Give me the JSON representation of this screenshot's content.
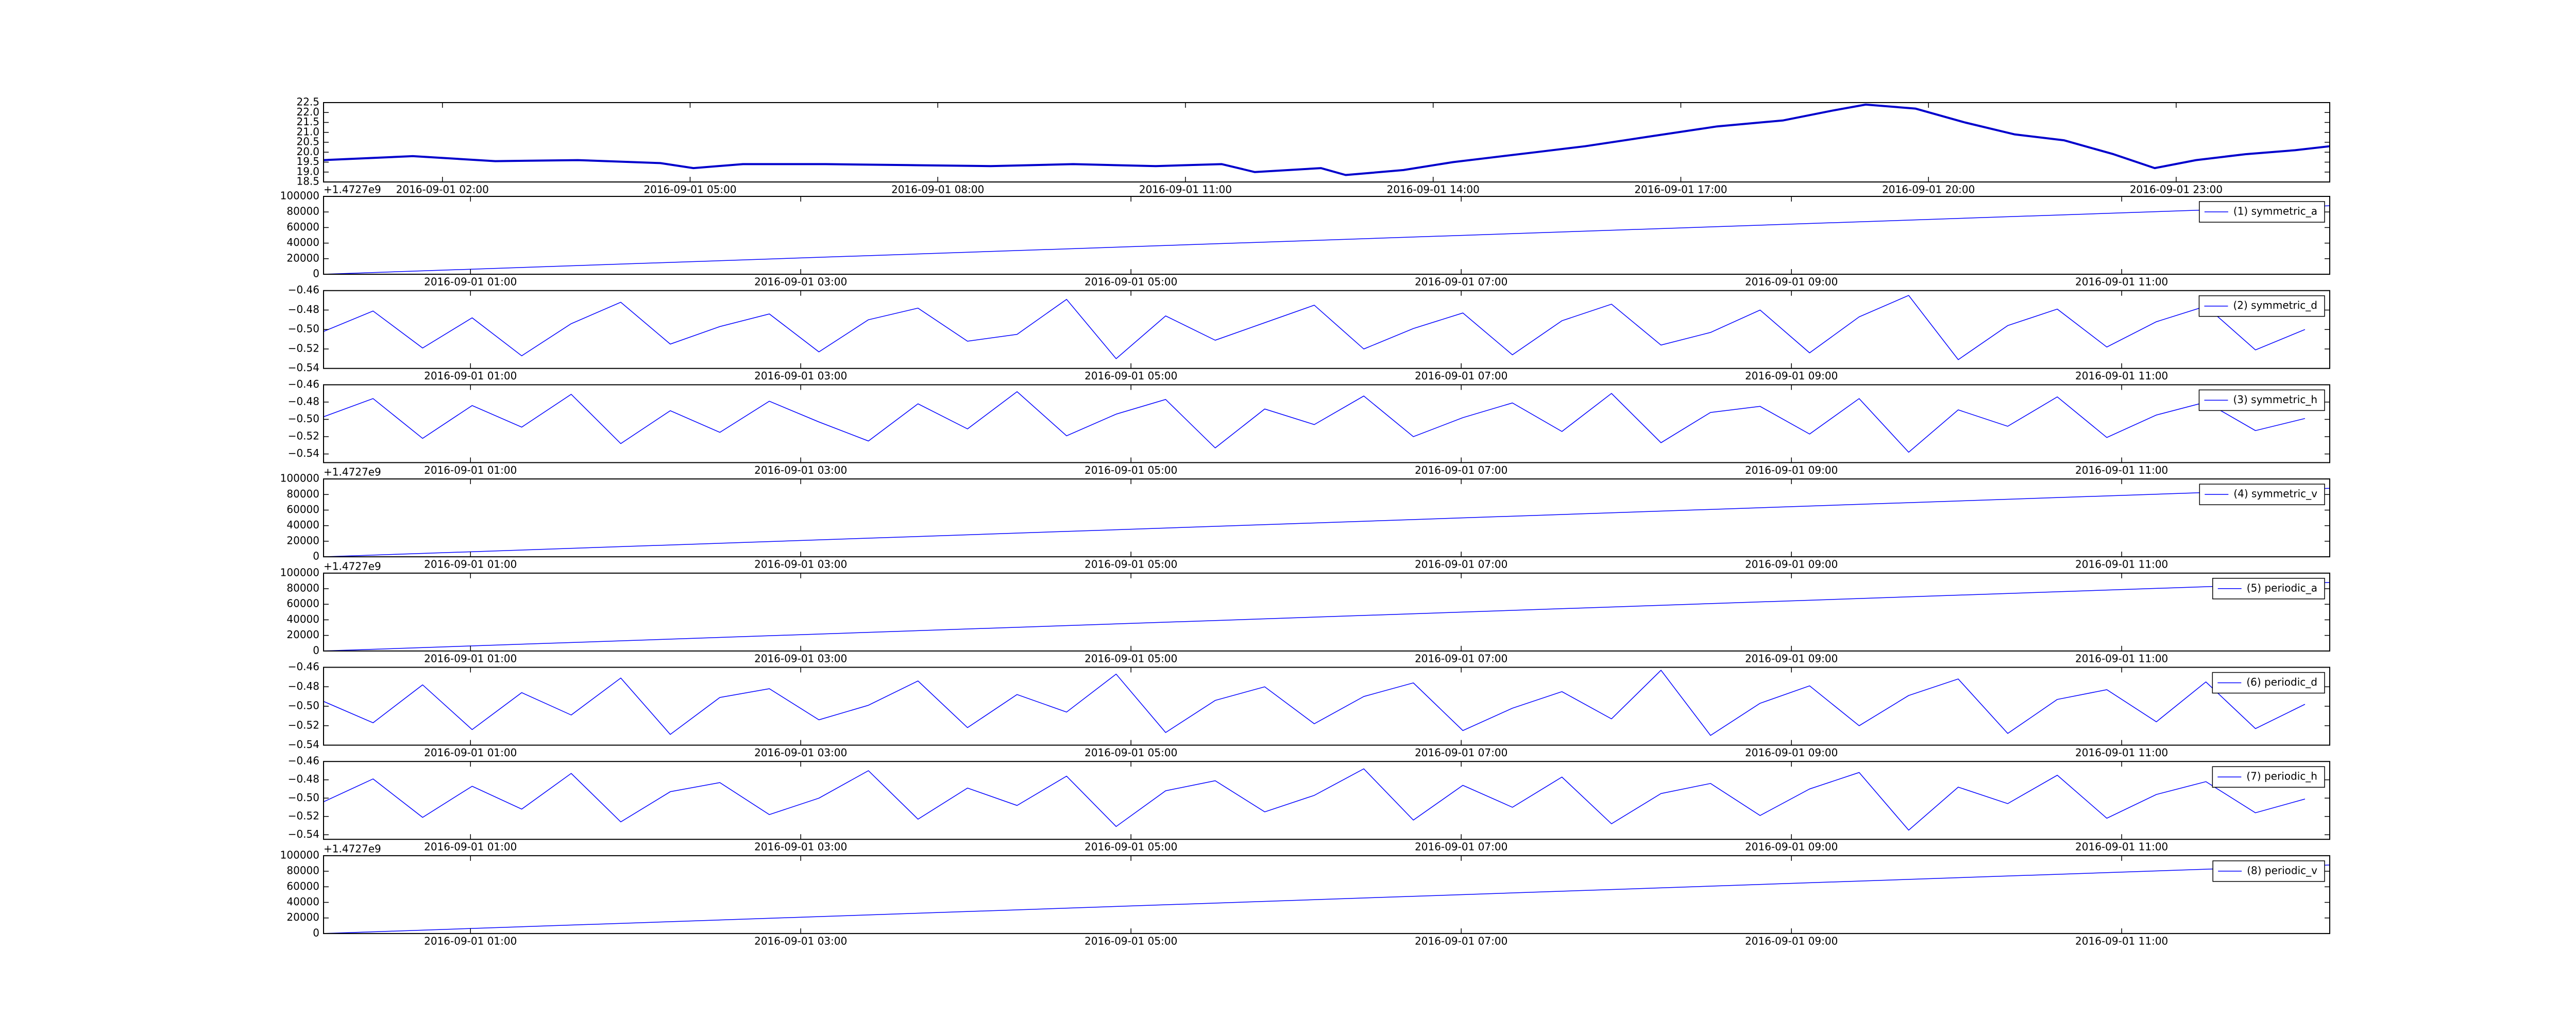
{
  "chart_data": [
    {
      "type": "line",
      "color": "#0000cc",
      "linewidth": 4,
      "x": [
        0.56,
        1.64,
        2.64,
        3.64,
        4.64,
        5.04,
        5.64,
        6.64,
        7.64,
        8.64,
        9.64,
        10.64,
        11.44,
        11.84,
        12.64,
        12.94,
        13.64,
        14.24,
        14.64,
        15.24,
        15.84,
        16.64,
        17.44,
        18.24,
        18.84,
        19.24,
        19.84,
        20.44,
        21.04,
        21.64,
        22.24,
        22.74,
        23.24,
        23.84,
        24.44,
        24.86
      ],
      "values": [
        19.6,
        19.8,
        19.55,
        19.6,
        19.45,
        19.2,
        19.4,
        19.4,
        19.35,
        19.3,
        19.4,
        19.3,
        19.4,
        19.0,
        19.2,
        18.85,
        19.1,
        19.5,
        19.7,
        20.0,
        20.3,
        20.8,
        21.3,
        21.6,
        22.1,
        22.4,
        22.2,
        21.5,
        20.9,
        20.6,
        19.9,
        19.2,
        19.6,
        19.9,
        20.1,
        20.3
      ],
      "xlim": [
        0.56,
        24.86
      ],
      "xticks": [
        {
          "value": 2,
          "label": "2016-09-01 02:00"
        },
        {
          "value": 5,
          "label": "2016-09-01 05:00"
        },
        {
          "value": 8,
          "label": "2016-09-01 08:00"
        },
        {
          "value": 11,
          "label": "2016-09-01 11:00"
        },
        {
          "value": 14,
          "label": "2016-09-01 14:00"
        },
        {
          "value": 17,
          "label": "2016-09-01 17:00"
        },
        {
          "value": 20,
          "label": "2016-09-01 20:00"
        },
        {
          "value": 23,
          "label": "2016-09-01 23:00"
        }
      ],
      "ylim": [
        18.5,
        22.5
      ],
      "yticks": [
        18.5,
        {
          "value": 19,
          "label": "19.0"
        },
        19.5,
        {
          "value": 20,
          "label": "20.0"
        },
        20.5,
        {
          "value": 21,
          "label": "21.0"
        },
        21.5,
        {
          "value": 22,
          "label": "22.0"
        },
        22.5
      ]
    },
    {
      "type": "line",
      "offset_text": "+1.4727e9",
      "legend": "upper right",
      "x": [
        0.11,
        12.26
      ],
      "series": [
        {
          "name": "(1) symmetric_a",
          "color": "#0000ff",
          "values": [
            0,
            88000
          ]
        }
      ],
      "xlim": [
        0.11,
        12.26
      ],
      "xticks": [
        {
          "value": 1,
          "label": "2016-09-01 01:00"
        },
        {
          "value": 3,
          "label": "2016-09-01 03:00"
        },
        {
          "value": 5,
          "label": "2016-09-01 05:00"
        },
        {
          "value": 7,
          "label": "2016-09-01 07:00"
        },
        {
          "value": 9,
          "label": "2016-09-01 09:00"
        },
        {
          "value": 11,
          "label": "2016-09-01 11:00"
        }
      ],
      "ylim": [
        0,
        100000
      ],
      "yticks": [
        0,
        20000,
        40000,
        60000,
        80000,
        100000
      ]
    },
    {
      "type": "line",
      "legend": "upper right",
      "x": [
        0.11,
        0.41,
        0.71,
        1.01,
        1.31,
        1.61,
        1.91,
        2.21,
        2.51,
        2.81,
        3.11,
        3.41,
        3.71,
        4.01,
        4.31,
        4.61,
        4.91,
        5.21,
        5.51,
        5.81,
        6.11,
        6.41,
        6.71,
        7.01,
        7.31,
        7.61,
        7.91,
        8.21,
        8.51,
        8.81,
        9.11,
        9.41,
        9.71,
        10.01,
        10.31,
        10.61,
        10.91,
        11.21,
        11.51,
        11.81,
        12.11
      ],
      "series": [
        {
          "name": "(2) symmetric_d",
          "color": "#0000ff",
          "values": [
            -0.502,
            -0.481,
            -0.519,
            -0.488,
            -0.527,
            -0.494,
            -0.472,
            -0.515,
            -0.497,
            -0.484,
            -0.523,
            -0.49,
            -0.478,
            -0.512,
            -0.505,
            -0.469,
            -0.53,
            -0.486,
            -0.511,
            -0.493,
            -0.475,
            -0.52,
            -0.499,
            -0.483,
            -0.526,
            -0.491,
            -0.474,
            -0.516,
            -0.503,
            -0.48,
            -0.524,
            -0.487,
            -0.465,
            -0.531,
            -0.496,
            -0.479,
            -0.518,
            -0.492,
            -0.476,
            -0.521,
            -0.5
          ]
        }
      ],
      "xlim": [
        0.11,
        12.26
      ],
      "xticks": [
        {
          "value": 1,
          "label": "2016-09-01 01:00"
        },
        {
          "value": 3,
          "label": "2016-09-01 03:00"
        },
        {
          "value": 5,
          "label": "2016-09-01 05:00"
        },
        {
          "value": 7,
          "label": "2016-09-01 07:00"
        },
        {
          "value": 9,
          "label": "2016-09-01 09:00"
        },
        {
          "value": 11,
          "label": "2016-09-01 11:00"
        }
      ],
      "ylim": [
        -0.54,
        -0.46
      ],
      "yticks": [
        {
          "value": -0.54,
          "label": "−0.54"
        },
        {
          "value": -0.52,
          "label": "−0.52"
        },
        {
          "value": -0.5,
          "label": "−0.50"
        },
        {
          "value": -0.48,
          "label": "−0.48"
        },
        {
          "value": -0.46,
          "label": "−0.46"
        }
      ]
    },
    {
      "type": "line",
      "legend": "upper right",
      "x": [
        0.11,
        0.41,
        0.71,
        1.01,
        1.31,
        1.61,
        1.91,
        2.21,
        2.51,
        2.81,
        3.11,
        3.41,
        3.71,
        4.01,
        4.31,
        4.61,
        4.91,
        5.21,
        5.51,
        5.81,
        6.11,
        6.41,
        6.71,
        7.01,
        7.31,
        7.61,
        7.91,
        8.21,
        8.51,
        8.81,
        9.11,
        9.41,
        9.71,
        10.01,
        10.31,
        10.61,
        10.91,
        11.21,
        11.51,
        11.81,
        12.11
      ],
      "series": [
        {
          "name": "(3) symmetric_h",
          "color": "#0000ff",
          "values": [
            -0.497,
            -0.476,
            -0.522,
            -0.484,
            -0.509,
            -0.471,
            -0.528,
            -0.49,
            -0.515,
            -0.479,
            -0.503,
            -0.525,
            -0.482,
            -0.511,
            -0.468,
            -0.519,
            -0.494,
            -0.477,
            -0.533,
            -0.488,
            -0.506,
            -0.473,
            -0.52,
            -0.498,
            -0.481,
            -0.514,
            -0.47,
            -0.527,
            -0.492,
            -0.485,
            -0.517,
            -0.476,
            -0.538,
            -0.489,
            -0.508,
            -0.474,
            -0.521,
            -0.495,
            -0.48,
            -0.513,
            -0.499
          ]
        }
      ],
      "xlim": [
        0.11,
        12.26
      ],
      "xticks": [
        {
          "value": 1,
          "label": "2016-09-01 01:00"
        },
        {
          "value": 3,
          "label": "2016-09-01 03:00"
        },
        {
          "value": 5,
          "label": "2016-09-01 05:00"
        },
        {
          "value": 7,
          "label": "2016-09-01 07:00"
        },
        {
          "value": 9,
          "label": "2016-09-01 09:00"
        },
        {
          "value": 11,
          "label": "2016-09-01 11:00"
        }
      ],
      "ylim": [
        -0.55,
        -0.46
      ],
      "yticks": [
        {
          "value": -0.54,
          "label": "−0.54"
        },
        {
          "value": -0.52,
          "label": "−0.52"
        },
        {
          "value": -0.5,
          "label": "−0.50"
        },
        {
          "value": -0.48,
          "label": "−0.48"
        },
        {
          "value": -0.46,
          "label": "−0.46"
        }
      ]
    },
    {
      "type": "line",
      "offset_text": "+1.4727e9",
      "legend": "upper right",
      "x": [
        0.11,
        12.26
      ],
      "series": [
        {
          "name": "(4) symmetric_v",
          "color": "#0000ff",
          "values": [
            0,
            88000
          ]
        }
      ],
      "xlim": [
        0.11,
        12.26
      ],
      "xticks": [
        {
          "value": 1,
          "label": "2016-09-01 01:00"
        },
        {
          "value": 3,
          "label": "2016-09-01 03:00"
        },
        {
          "value": 5,
          "label": "2016-09-01 05:00"
        },
        {
          "value": 7,
          "label": "2016-09-01 07:00"
        },
        {
          "value": 9,
          "label": "2016-09-01 09:00"
        },
        {
          "value": 11,
          "label": "2016-09-01 11:00"
        }
      ],
      "ylim": [
        0,
        100000
      ],
      "yticks": [
        0,
        20000,
        40000,
        60000,
        80000,
        100000
      ]
    },
    {
      "type": "line",
      "offset_text": "+1.4727e9",
      "legend": "upper right",
      "x": [
        0.11,
        12.26
      ],
      "series": [
        {
          "name": "(5) periodic_a",
          "color": "#0000ff",
          "values": [
            0,
            88000
          ]
        }
      ],
      "xlim": [
        0.11,
        12.26
      ],
      "xticks": [
        {
          "value": 1,
          "label": "2016-09-01 01:00"
        },
        {
          "value": 3,
          "label": "2016-09-01 03:00"
        },
        {
          "value": 5,
          "label": "2016-09-01 05:00"
        },
        {
          "value": 7,
          "label": "2016-09-01 07:00"
        },
        {
          "value": 9,
          "label": "2016-09-01 09:00"
        },
        {
          "value": 11,
          "label": "2016-09-01 11:00"
        }
      ],
      "ylim": [
        0,
        100000
      ],
      "yticks": [
        0,
        20000,
        40000,
        60000,
        80000,
        100000
      ]
    },
    {
      "type": "line",
      "legend": "upper right",
      "x": [
        0.11,
        0.41,
        0.71,
        1.01,
        1.31,
        1.61,
        1.91,
        2.21,
        2.51,
        2.81,
        3.11,
        3.41,
        3.71,
        4.01,
        4.31,
        4.61,
        4.91,
        5.21,
        5.51,
        5.81,
        6.11,
        6.41,
        6.71,
        7.01,
        7.31,
        7.61,
        7.91,
        8.21,
        8.51,
        8.81,
        9.11,
        9.41,
        9.71,
        10.01,
        10.31,
        10.61,
        10.91,
        11.21,
        11.51,
        11.81,
        12.11
      ],
      "series": [
        {
          "name": "(6) periodic_d",
          "color": "#0000ff",
          "values": [
            -0.495,
            -0.517,
            -0.478,
            -0.524,
            -0.486,
            -0.509,
            -0.471,
            -0.529,
            -0.491,
            -0.482,
            -0.514,
            -0.499,
            -0.474,
            -0.522,
            -0.488,
            -0.506,
            -0.467,
            -0.527,
            -0.494,
            -0.48,
            -0.518,
            -0.49,
            -0.476,
            -0.525,
            -0.502,
            -0.485,
            -0.513,
            -0.463,
            -0.53,
            -0.497,
            -0.479,
            -0.52,
            -0.489,
            -0.472,
            -0.528,
            -0.493,
            -0.483,
            -0.516,
            -0.475,
            -0.523,
            -0.498
          ]
        }
      ],
      "xlim": [
        0.11,
        12.26
      ],
      "xticks": [
        {
          "value": 1,
          "label": "2016-09-01 01:00"
        },
        {
          "value": 3,
          "label": "2016-09-01 03:00"
        },
        {
          "value": 5,
          "label": "2016-09-01 05:00"
        },
        {
          "value": 7,
          "label": "2016-09-01 07:00"
        },
        {
          "value": 9,
          "label": "2016-09-01 09:00"
        },
        {
          "value": 11,
          "label": "2016-09-01 11:00"
        }
      ],
      "ylim": [
        -0.54,
        -0.46
      ],
      "yticks": [
        {
          "value": -0.54,
          "label": "−0.54"
        },
        {
          "value": -0.52,
          "label": "−0.52"
        },
        {
          "value": -0.5,
          "label": "−0.50"
        },
        {
          "value": -0.48,
          "label": "−0.48"
        },
        {
          "value": -0.46,
          "label": "−0.46"
        }
      ]
    },
    {
      "type": "line",
      "legend": "upper right",
      "x": [
        0.11,
        0.41,
        0.71,
        1.01,
        1.31,
        1.61,
        1.91,
        2.21,
        2.51,
        2.81,
        3.11,
        3.41,
        3.71,
        4.01,
        4.31,
        4.61,
        4.91,
        5.21,
        5.51,
        5.81,
        6.11,
        6.41,
        6.71,
        7.01,
        7.31,
        7.61,
        7.91,
        8.21,
        8.51,
        8.81,
        9.11,
        9.41,
        9.71,
        10.01,
        10.31,
        10.61,
        10.91,
        11.21,
        11.51,
        11.81,
        12.11
      ],
      "series": [
        {
          "name": "(7) periodic_h",
          "color": "#0000ff",
          "values": [
            -0.504,
            -0.479,
            -0.521,
            -0.487,
            -0.512,
            -0.473,
            -0.526,
            -0.493,
            -0.483,
            -0.518,
            -0.5,
            -0.47,
            -0.523,
            -0.489,
            -0.508,
            -0.476,
            -0.531,
            -0.492,
            -0.481,
            -0.515,
            -0.497,
            -0.468,
            -0.524,
            -0.486,
            -0.51,
            -0.477,
            -0.528,
            -0.495,
            -0.484,
            -0.519,
            -0.49,
            -0.472,
            -0.535,
            -0.488,
            -0.506,
            -0.475,
            -0.522,
            -0.496,
            -0.482,
            -0.516,
            -0.501
          ]
        }
      ],
      "xlim": [
        0.11,
        12.26
      ],
      "xticks": [
        {
          "value": 1,
          "label": "2016-09-01 01:00"
        },
        {
          "value": 3,
          "label": "2016-09-01 03:00"
        },
        {
          "value": 5,
          "label": "2016-09-01 05:00"
        },
        {
          "value": 7,
          "label": "2016-09-01 07:00"
        },
        {
          "value": 9,
          "label": "2016-09-01 09:00"
        },
        {
          "value": 11,
          "label": "2016-09-01 11:00"
        }
      ],
      "ylim": [
        -0.545,
        -0.46
      ],
      "yticks": [
        {
          "value": -0.54,
          "label": "−0.54"
        },
        {
          "value": -0.52,
          "label": "−0.52"
        },
        {
          "value": -0.5,
          "label": "−0.50"
        },
        {
          "value": -0.48,
          "label": "−0.48"
        },
        {
          "value": -0.46,
          "label": "−0.46"
        }
      ]
    },
    {
      "type": "line",
      "offset_text": "+1.4727e9",
      "legend": "upper right",
      "x": [
        0.11,
        12.26
      ],
      "series": [
        {
          "name": "(8) periodic_v",
          "color": "#0000ff",
          "values": [
            0,
            88000
          ]
        }
      ],
      "xlim": [
        0.11,
        12.26
      ],
      "xticks": [
        {
          "value": 1,
          "label": "2016-09-01 01:00"
        },
        {
          "value": 3,
          "label": "2016-09-01 03:00"
        },
        {
          "value": 5,
          "label": "2016-09-01 05:00"
        },
        {
          "value": 7,
          "label": "2016-09-01 07:00"
        },
        {
          "value": 9,
          "label": "2016-09-01 09:00"
        },
        {
          "value": 11,
          "label": "2016-09-01 11:00"
        }
      ],
      "ylim": [
        0,
        100000
      ],
      "yticks": [
        0,
        20000,
        40000,
        60000,
        80000,
        100000
      ]
    }
  ]
}
